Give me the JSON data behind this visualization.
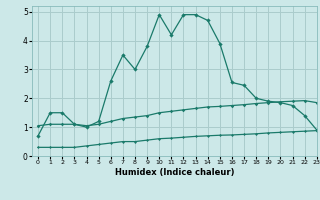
{
  "xlabel": "Humidex (Indice chaleur)",
  "bg_color": "#cce8e8",
  "grid_color": "#aacccc",
  "line_color": "#1a7a6a",
  "xlim": [
    -0.5,
    23
  ],
  "ylim": [
    0,
    5.2
  ],
  "xticks": [
    0,
    1,
    2,
    3,
    4,
    5,
    6,
    7,
    8,
    9,
    10,
    11,
    12,
    13,
    14,
    15,
    16,
    17,
    18,
    19,
    20,
    21,
    22,
    23
  ],
  "yticks": [
    0,
    1,
    2,
    3,
    4,
    5
  ],
  "line1_x": [
    0,
    1,
    2,
    3,
    4,
    5,
    6,
    7,
    8,
    9,
    10,
    11,
    12,
    13,
    14,
    15,
    16,
    17,
    18,
    19,
    20,
    21,
    22,
    23
  ],
  "line1_y": [
    0.7,
    1.5,
    1.5,
    1.1,
    1.0,
    1.2,
    2.6,
    3.5,
    3.0,
    3.8,
    4.9,
    4.2,
    4.9,
    4.9,
    4.7,
    3.9,
    2.55,
    2.45,
    2.0,
    1.9,
    1.85,
    1.75,
    1.4,
    0.9
  ],
  "line2_x": [
    0,
    1,
    2,
    3,
    4,
    5,
    6,
    7,
    8,
    9,
    10,
    11,
    12,
    13,
    14,
    15,
    16,
    17,
    18,
    19,
    20,
    21,
    22,
    23
  ],
  "line2_y": [
    1.05,
    1.1,
    1.1,
    1.1,
    1.05,
    1.1,
    1.2,
    1.3,
    1.35,
    1.4,
    1.5,
    1.55,
    1.6,
    1.65,
    1.7,
    1.72,
    1.75,
    1.78,
    1.82,
    1.85,
    1.88,
    1.9,
    1.92,
    1.85
  ],
  "line3_x": [
    0,
    1,
    2,
    3,
    4,
    5,
    6,
    7,
    8,
    9,
    10,
    11,
    12,
    13,
    14,
    15,
    16,
    17,
    18,
    19,
    20,
    21,
    22,
    23
  ],
  "line3_y": [
    0.3,
    0.3,
    0.3,
    0.3,
    0.35,
    0.4,
    0.45,
    0.5,
    0.5,
    0.55,
    0.6,
    0.62,
    0.65,
    0.68,
    0.7,
    0.72,
    0.73,
    0.75,
    0.77,
    0.8,
    0.82,
    0.84,
    0.86,
    0.88
  ]
}
